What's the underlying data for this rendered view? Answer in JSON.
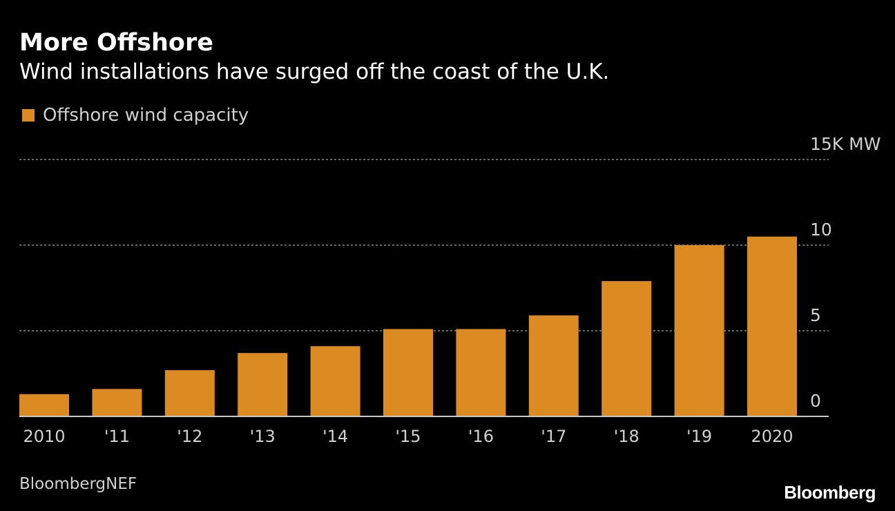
{
  "chart_data": {
    "type": "bar",
    "title": "More Offshore",
    "subtitle": "Wind installations have surged off the coast of the U.K.",
    "legend": [
      {
        "name": "Offshore wind capacity",
        "color": "#dc8a22"
      }
    ],
    "legend_placement": "top-left",
    "categories": [
      "2010",
      "'11",
      "'12",
      "'13",
      "'14",
      "'15",
      "'16",
      "'17",
      "'18",
      "'19",
      "2020"
    ],
    "series": [
      {
        "name": "Offshore wind capacity",
        "values": [
          1.3,
          1.6,
          2.7,
          3.7,
          4.1,
          5.1,
          5.1,
          5.9,
          7.9,
          10.0,
          10.5
        ]
      }
    ],
    "ylabel_unit": "K MW",
    "yticks": [
      {
        "value": 0,
        "label": "0"
      },
      {
        "value": 5,
        "label": "5"
      },
      {
        "value": 10,
        "label": "10"
      },
      {
        "value": 15,
        "label": "15K MW"
      }
    ],
    "ylim": [
      0,
      15
    ],
    "grid": true,
    "source": "BloombergNEF",
    "logo": "Bloomberg"
  }
}
